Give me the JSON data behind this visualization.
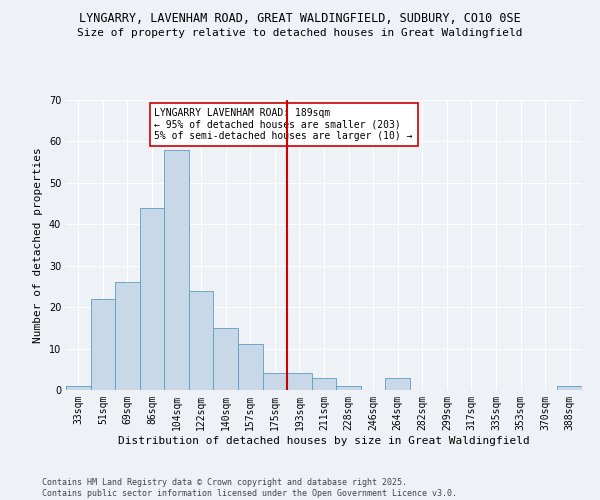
{
  "title": "LYNGARRY, LAVENHAM ROAD, GREAT WALDINGFIELD, SUDBURY, CO10 0SE",
  "subtitle": "Size of property relative to detached houses in Great Waldingfield",
  "xlabel": "Distribution of detached houses by size in Great Waldingfield",
  "ylabel": "Number of detached properties",
  "footer_line1": "Contains HM Land Registry data © Crown copyright and database right 2025.",
  "footer_line2": "Contains public sector information licensed under the Open Government Licence v3.0.",
  "bar_labels": [
    "33sqm",
    "51sqm",
    "69sqm",
    "86sqm",
    "104sqm",
    "122sqm",
    "140sqm",
    "157sqm",
    "175sqm",
    "193sqm",
    "211sqm",
    "228sqm",
    "246sqm",
    "264sqm",
    "282sqm",
    "299sqm",
    "317sqm",
    "335sqm",
    "353sqm",
    "370sqm",
    "388sqm"
  ],
  "bar_values": [
    1,
    22,
    26,
    44,
    58,
    24,
    15,
    11,
    4,
    4,
    3,
    1,
    0,
    3,
    0,
    0,
    0,
    0,
    0,
    0,
    1
  ],
  "bar_color": "#c8d8e8",
  "bar_edge_color": "#5a9fc0",
  "vline_color": "#cc0000",
  "annotation_text": "LYNGARRY LAVENHAM ROAD: 189sqm\n← 95% of detached houses are smaller (203)\n5% of semi-detached houses are larger (10) →",
  "annotation_box_color": "#ffffff",
  "annotation_box_edge": "#cc0000",
  "ylim": [
    0,
    70
  ],
  "yticks": [
    0,
    10,
    20,
    30,
    40,
    50,
    60,
    70
  ],
  "bg_color": "#eef2f7",
  "plot_bg_color": "#eef2f7",
  "grid_color": "#ffffff",
  "title_fontsize": 8.5,
  "subtitle_fontsize": 8,
  "label_fontsize": 8,
  "tick_fontsize": 7,
  "annotation_fontsize": 7,
  "footer_fontsize": 6
}
